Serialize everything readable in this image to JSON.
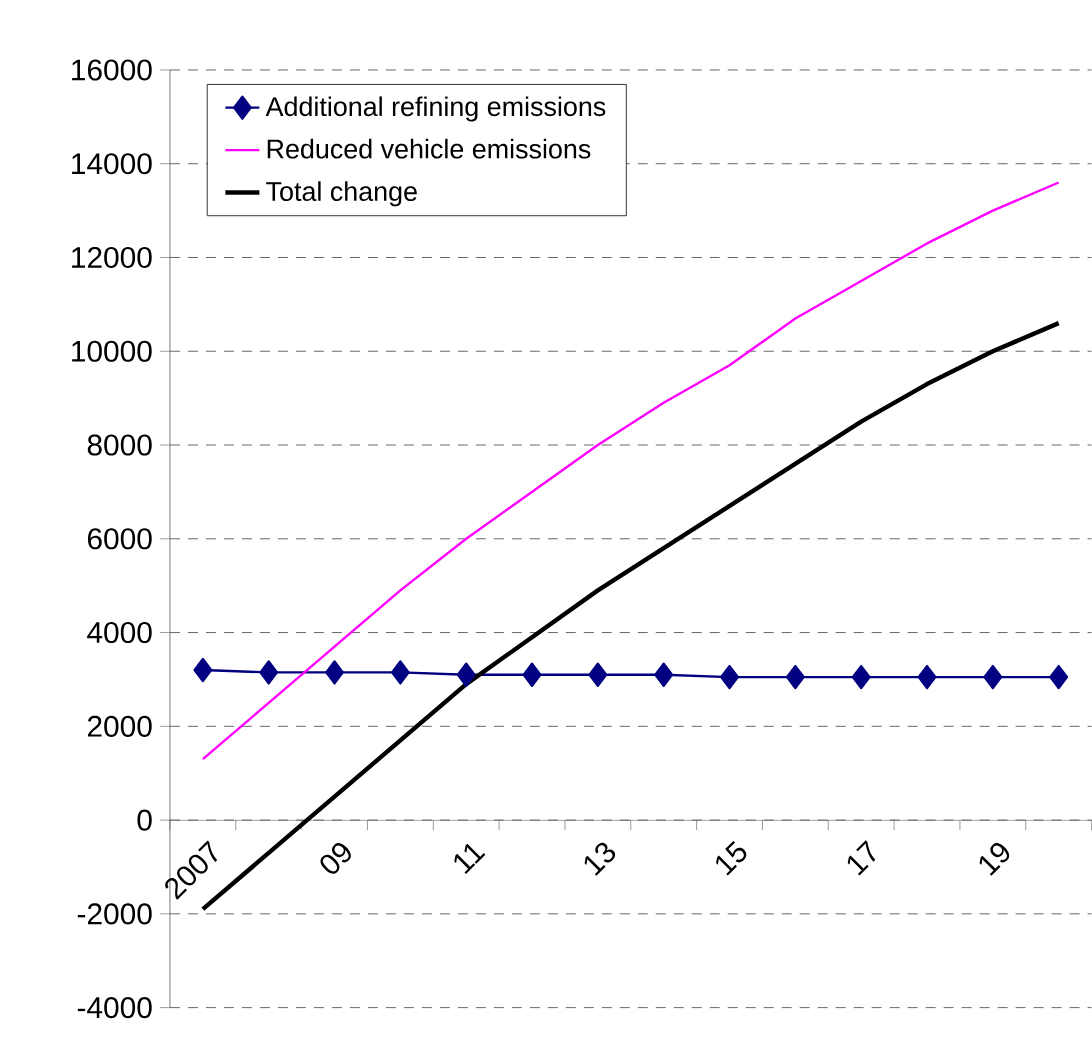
{
  "chart_data": {
    "type": "line",
    "categories": [
      "2007",
      null,
      "09",
      null,
      "11",
      null,
      "13",
      null,
      "15",
      null,
      "17",
      null,
      "19",
      null
    ],
    "series": [
      {
        "name": "Additional refining emissions",
        "color": "#000080",
        "marker": "diamond",
        "values": [
          3200,
          3150,
          3150,
          3150,
          3100,
          3100,
          3100,
          3100,
          3050,
          3050,
          3050,
          3050,
          3050,
          3050
        ]
      },
      {
        "name": "Reduced vehicle emissions",
        "color": "#ff00ff",
        "marker": "none",
        "values": [
          1300,
          2500,
          3700,
          4900,
          6000,
          7000,
          8000,
          8900,
          9700,
          10700,
          11500,
          12300,
          13000,
          13600
        ]
      },
      {
        "name": "Total change",
        "color": "#000000",
        "marker": "none",
        "values": [
          -1900,
          -700,
          500,
          1700,
          2900,
          3900,
          4900,
          5800,
          6700,
          7600,
          8500,
          9300,
          10000,
          10600
        ]
      }
    ],
    "ylim": [
      -4000,
      16000
    ],
    "yticks": [
      -4000,
      -2000,
      0,
      2000,
      4000,
      6000,
      8000,
      10000,
      12000,
      14000,
      16000
    ],
    "grid": "y",
    "legend": "top left",
    "line_style": "solid"
  }
}
